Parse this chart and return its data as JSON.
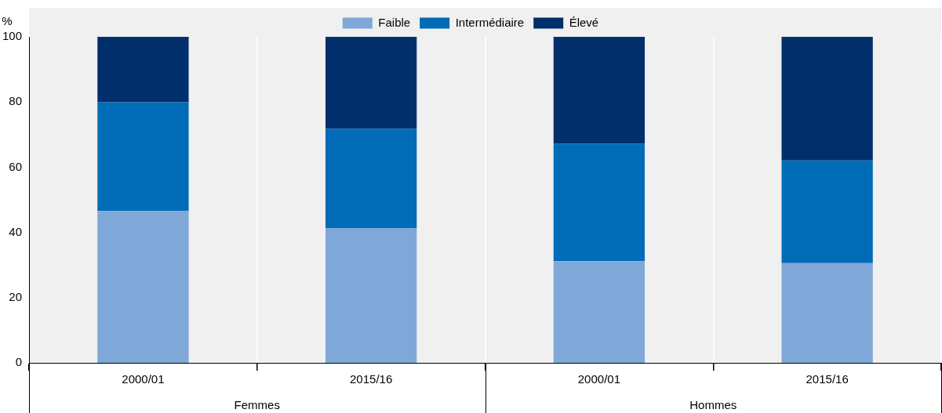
{
  "chart_data": {
    "type": "bar",
    "stacked": true,
    "ylabel": "%",
    "categories": [
      "2000/01",
      "2015/16",
      "2000/01",
      "2015/16"
    ],
    "annotations": [
      "Femmes",
      "Hommes"
    ],
    "series": [
      {
        "name": "Faible",
        "color": "#7fa8d9",
        "values": [
          46.6,
          41.2,
          31.2,
          30.6
        ]
      },
      {
        "name": "Intermédiaire",
        "color": "#006bb6",
        "values": [
          33.3,
          30.6,
          36.0,
          31.5
        ]
      },
      {
        "name": "Élevé",
        "color": "#002f6c",
        "values": [
          20.1,
          28.2,
          32.8,
          37.9
        ]
      }
    ],
    "ylim": [
      0,
      100
    ],
    "yticks": [
      0,
      20,
      40,
      60,
      80,
      100
    ],
    "grid": "x",
    "legend": "top"
  }
}
